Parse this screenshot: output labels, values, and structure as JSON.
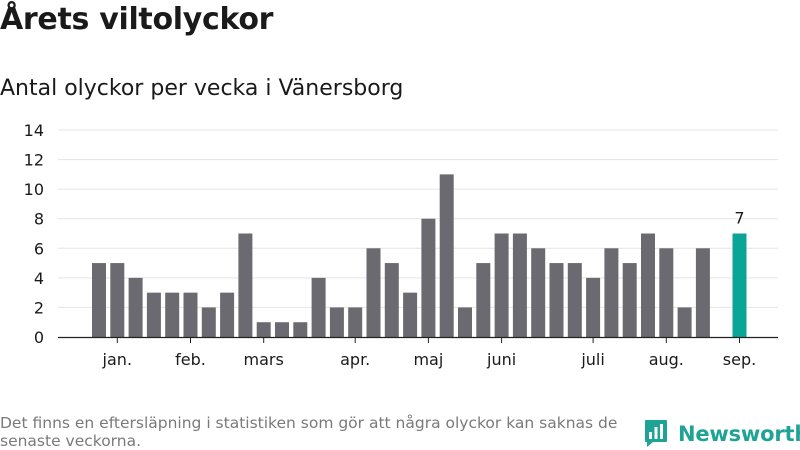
{
  "title": "Årets viltolyckor",
  "subtitle": "Antal olyckor per vecka i Vänersborg",
  "footnote": "Det finns en eftersläpning i statistiken som gör att några olyckor kan saknas de senaste veckorna.",
  "brand": {
    "name": "Newsworthy"
  },
  "colors": {
    "bar": "#6b6a70",
    "highlight": "#0aa597",
    "grid": "#e4e4e4",
    "axis": "#222222",
    "text": "#1a1a1a",
    "muted": "#7a7a7a",
    "brand": "#1fa396"
  },
  "chart_data": {
    "type": "bar",
    "x": [
      1,
      2,
      3,
      4,
      5,
      6,
      7,
      8,
      9,
      10,
      11,
      12,
      13,
      14,
      15,
      16,
      17,
      18,
      19,
      20,
      21,
      22,
      23,
      24,
      25,
      26,
      27,
      28,
      29,
      30,
      31,
      32,
      33,
      34,
      35,
      36,
      37,
      38
    ],
    "values": [
      5,
      5,
      4,
      3,
      3,
      3,
      2,
      3,
      7,
      1,
      1,
      1,
      4,
      2,
      2,
      6,
      5,
      3,
      8,
      11,
      2,
      5,
      7,
      7,
      6,
      5,
      5,
      4,
      6,
      5,
      7,
      6,
      2,
      6,
      null,
      7,
      null,
      null
    ],
    "highlight_index": 35,
    "highlight_label": "7",
    "month_labels": [
      {
        "label": "jan.",
        "x": 2
      },
      {
        "label": "feb.",
        "x": 6
      },
      {
        "label": "mars",
        "x": 10
      },
      {
        "label": "apr.",
        "x": 15
      },
      {
        "label": "maj",
        "x": 19
      },
      {
        "label": "juni",
        "x": 23
      },
      {
        "label": "juli",
        "x": 28
      },
      {
        "label": "aug.",
        "x": 32
      },
      {
        "label": "sep.",
        "x": 36
      }
    ],
    "yticks": [
      0,
      2,
      4,
      6,
      8,
      10,
      12,
      14
    ],
    "ylim": [
      0,
      14
    ],
    "grid": true,
    "xlabel": "",
    "ylabel": ""
  }
}
